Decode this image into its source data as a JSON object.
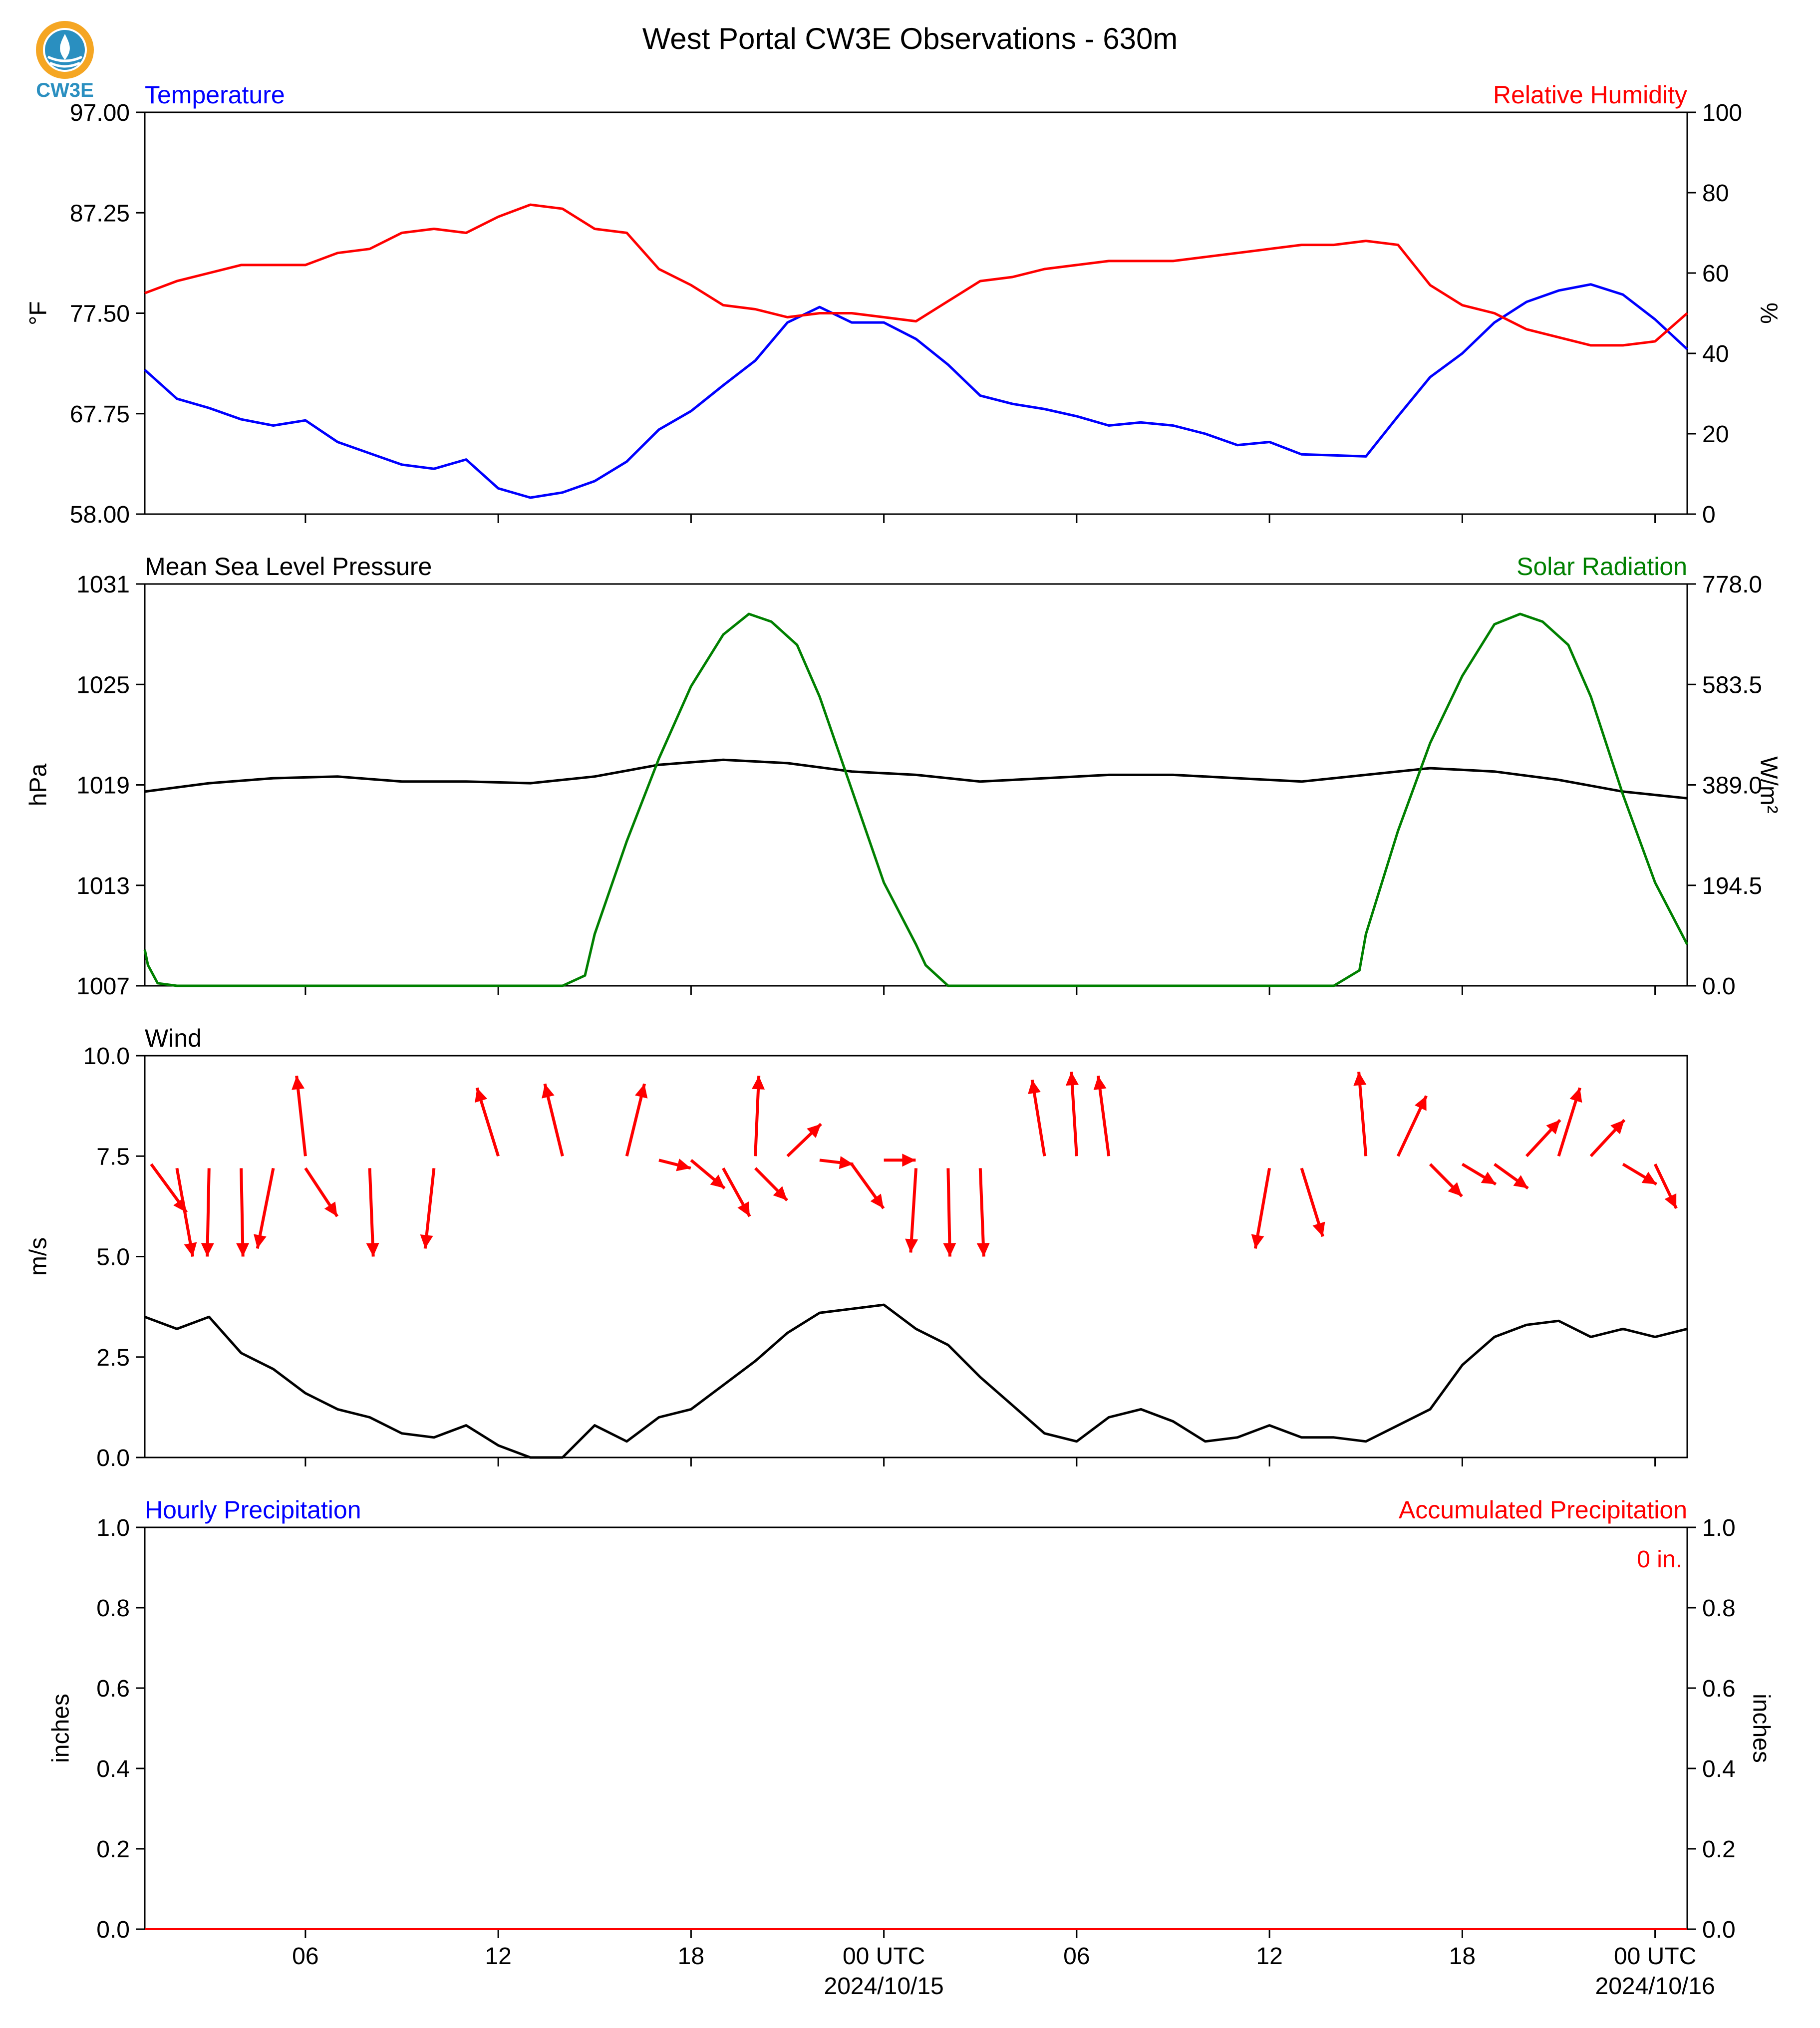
{
  "title": "West Portal CW3E Observations - 630m",
  "logo": {
    "text": "CW3E",
    "colors": {
      "ring": "#f5a623",
      "drop": "#2a8fc0",
      "text": "#2a8fc0"
    }
  },
  "colors": {
    "blue": "#0000ff",
    "red": "#ff0000",
    "green": "#008000",
    "black": "#000000"
  },
  "x_axis": {
    "range_hours": [
      0,
      48
    ],
    "tick_hours": [
      5,
      11,
      17,
      23,
      29,
      35,
      41,
      47
    ],
    "tick_labels": [
      "06",
      "12",
      "18",
      "00 UTC",
      "06",
      "12",
      "18",
      "00 UTC"
    ],
    "date_labels": [
      {
        "hour": 23,
        "text": "2024/10/15"
      },
      {
        "hour": 47,
        "text": "2024/10/16"
      }
    ]
  },
  "chart_data": [
    {
      "type": "line",
      "panel": "temperature-humidity",
      "left_title": "Temperature",
      "right_title": "Relative Humidity",
      "ylabel_left": "°F",
      "ylabel_right": "%",
      "ylim_left": [
        58.0,
        97.0
      ],
      "yticks_left": [
        "58.00",
        "67.75",
        "77.50",
        "87.25",
        "97.00"
      ],
      "ylim_right": [
        0,
        100
      ],
      "yticks_right": [
        "0",
        "20",
        "40",
        "60",
        "80",
        "100"
      ],
      "series": [
        {
          "name": "Temperature",
          "axis": "left",
          "color": "#0000ff",
          "x": [
            0,
            1,
            2,
            3,
            4,
            5,
            6,
            7,
            8,
            9,
            10,
            11,
            12,
            13,
            14,
            15,
            16,
            17,
            18,
            19,
            20,
            21,
            22,
            23,
            24,
            25,
            26,
            27,
            28,
            29,
            30,
            31,
            32,
            33,
            34,
            35,
            36,
            37,
            38,
            39,
            40,
            41,
            42,
            43,
            44,
            45,
            46,
            47,
            48
          ],
          "y": [
            72.0,
            69.2,
            68.3,
            67.2,
            66.6,
            67.1,
            65.0,
            63.9,
            62.8,
            62.4,
            63.3,
            60.5,
            59.6,
            60.1,
            61.2,
            63.1,
            66.2,
            68.0,
            70.5,
            72.9,
            76.6,
            78.1,
            76.6,
            76.6,
            75.0,
            72.5,
            69.5,
            68.7,
            68.2,
            67.5,
            66.6,
            66.9,
            66.6,
            65.8,
            64.7,
            65.0,
            63.8,
            63.7,
            63.6,
            67.5,
            71.3,
            73.6,
            76.6,
            78.6,
            79.7,
            80.3,
            79.3,
            76.9,
            74.0
          ]
        },
        {
          "name": "Relative Humidity",
          "axis": "right",
          "color": "#ff0000",
          "x": [
            0,
            1,
            2,
            3,
            4,
            5,
            6,
            7,
            8,
            9,
            10,
            11,
            12,
            13,
            14,
            15,
            16,
            17,
            18,
            19,
            20,
            21,
            22,
            23,
            24,
            25,
            26,
            27,
            28,
            29,
            30,
            31,
            32,
            33,
            34,
            35,
            36,
            37,
            38,
            39,
            40,
            41,
            42,
            43,
            44,
            45,
            46,
            47,
            48
          ],
          "y": [
            55,
            58,
            60,
            62,
            62,
            62,
            65,
            66,
            70,
            71,
            70,
            74,
            77,
            76,
            71,
            70,
            61,
            57,
            52,
            51,
            49,
            50,
            50,
            49,
            48,
            53,
            58,
            59,
            61,
            62,
            63,
            63,
            63,
            64,
            65,
            66,
            67,
            67,
            68,
            67,
            57,
            52,
            50,
            46,
            44,
            42,
            42,
            43,
            50
          ]
        }
      ]
    },
    {
      "type": "line",
      "panel": "pressure-solar",
      "left_title": "Mean Sea Level Pressure",
      "right_title": "Solar Radiation",
      "ylabel_left": "hPa",
      "ylabel_right": "W/m²",
      "ylim_left": [
        1007,
        1031
      ],
      "yticks_left": [
        "1007",
        "1013",
        "1019",
        "1025",
        "1031"
      ],
      "ylim_right": [
        0.0,
        778.0
      ],
      "yticks_right": [
        "0.0",
        "194.5",
        "389.0",
        "583.5",
        "778.0"
      ],
      "series": [
        {
          "name": "Mean Sea Level Pressure",
          "axis": "left",
          "color": "#000000",
          "x": [
            0,
            2,
            4,
            6,
            8,
            10,
            12,
            14,
            16,
            18,
            20,
            22,
            24,
            26,
            28,
            30,
            32,
            34,
            36,
            38,
            40,
            42,
            44,
            46,
            48
          ],
          "y": [
            1018.6,
            1019.1,
            1019.4,
            1019.5,
            1019.2,
            1019.2,
            1019.1,
            1019.5,
            1020.2,
            1020.5,
            1020.3,
            1019.8,
            1019.6,
            1019.2,
            1019.4,
            1019.6,
            1019.6,
            1019.4,
            1019.2,
            1019.6,
            1020.0,
            1019.8,
            1019.3,
            1018.6,
            1018.2
          ]
        },
        {
          "name": "Solar Radiation",
          "axis": "right",
          "color": "#008000",
          "x": [
            0,
            0.1,
            0.4,
            1,
            5,
            10,
            13.0,
            13.7,
            14.0,
            15,
            16,
            17,
            18,
            18.8,
            19.5,
            20.3,
            21,
            22,
            23,
            24,
            24.3,
            25,
            30,
            35,
            37.0,
            37.8,
            38.0,
            39,
            40,
            41,
            42,
            42.8,
            43.5,
            44.3,
            45,
            46,
            47,
            48
          ],
          "y": [
            70,
            40,
            5,
            0,
            0,
            0,
            0,
            20,
            100,
            280,
            440,
            580,
            680,
            720,
            705,
            660,
            560,
            380,
            200,
            80,
            40,
            0,
            0,
            0,
            0,
            30,
            100,
            300,
            470,
            600,
            700,
            720,
            705,
            660,
            560,
            370,
            200,
            80
          ]
        }
      ]
    },
    {
      "type": "line",
      "panel": "wind",
      "left_title": "Wind",
      "ylabel_left": "m/s",
      "ylim_left": [
        0.0,
        10.0
      ],
      "yticks_left": [
        "0.0",
        "2.5",
        "5.0",
        "7.5",
        "10.0"
      ],
      "series": [
        {
          "name": "Wind",
          "color": "#000000",
          "x": [
            0,
            1,
            2,
            3,
            4,
            5,
            6,
            7,
            8,
            9,
            10,
            11,
            12,
            13,
            14,
            15,
            16,
            17,
            18,
            19,
            20,
            21,
            22,
            23,
            24,
            25,
            26,
            27,
            28,
            29,
            30,
            31,
            32,
            33,
            34,
            35,
            36,
            37,
            38,
            39,
            40,
            41,
            42,
            43,
            44,
            45,
            46,
            47,
            48
          ],
          "y": [
            3.5,
            3.2,
            3.5,
            2.6,
            2.2,
            1.6,
            1.2,
            1.0,
            0.6,
            0.5,
            0.8,
            0.3,
            0.0,
            0.0,
            0.8,
            0.4,
            1.0,
            1.2,
            1.8,
            2.4,
            3.1,
            3.6,
            3.7,
            3.8,
            3.2,
            2.8,
            2.0,
            1.3,
            0.6,
            0.4,
            1.0,
            1.2,
            0.9,
            0.4,
            0.5,
            0.8,
            0.5,
            0.5,
            0.4,
            0.8,
            1.2,
            2.3,
            3.0,
            3.3,
            3.4,
            3.0,
            3.2,
            3.0,
            3.2
          ]
        }
      ],
      "wind_arrows": [
        {
          "x": 0.2,
          "y": 7.3,
          "dx": 2.0,
          "dy": -1.2
        },
        {
          "x": 1.0,
          "y": 7.2,
          "dx": 0.9,
          "dy": -2.2
        },
        {
          "x": 2.0,
          "y": 7.2,
          "dx": -0.1,
          "dy": -2.2
        },
        {
          "x": 3.0,
          "y": 7.2,
          "dx": 0.1,
          "dy": -2.2
        },
        {
          "x": 4.0,
          "y": 7.2,
          "dx": -0.9,
          "dy": -2.0
        },
        {
          "x": 5.0,
          "y": 7.5,
          "dx": -0.5,
          "dy": 2.0
        },
        {
          "x": 5.0,
          "y": 7.2,
          "dx": 1.8,
          "dy": -1.2
        },
        {
          "x": 7.0,
          "y": 7.2,
          "dx": 0.2,
          "dy": -2.2
        },
        {
          "x": 9.0,
          "y": 7.2,
          "dx": -0.5,
          "dy": -2.0
        },
        {
          "x": 11.0,
          "y": 7.5,
          "dx": -1.2,
          "dy": 1.7
        },
        {
          "x": 13.0,
          "y": 7.5,
          "dx": -1.0,
          "dy": 1.8
        },
        {
          "x": 15.0,
          "y": 7.5,
          "dx": 1.0,
          "dy": 1.8
        },
        {
          "x": 16.0,
          "y": 7.4,
          "dx": 1.8,
          "dy": -0.2
        },
        {
          "x": 17.0,
          "y": 7.4,
          "dx": 1.9,
          "dy": -0.7
        },
        {
          "x": 18.0,
          "y": 7.2,
          "dx": 1.5,
          "dy": -1.2
        },
        {
          "x": 19.0,
          "y": 7.5,
          "dx": 0.2,
          "dy": 2.0
        },
        {
          "x": 19.0,
          "y": 7.2,
          "dx": 1.8,
          "dy": -0.8
        },
        {
          "x": 20.0,
          "y": 7.5,
          "dx": 1.9,
          "dy": 0.8
        },
        {
          "x": 21.0,
          "y": 7.4,
          "dx": 1.9,
          "dy": -0.1
        },
        {
          "x": 22.0,
          "y": 7.3,
          "dx": 1.8,
          "dy": -1.1
        },
        {
          "x": 23.0,
          "y": 7.4,
          "dx": 1.8,
          "dy": 0.0
        },
        {
          "x": 24.0,
          "y": 7.2,
          "dx": -0.3,
          "dy": -2.1
        },
        {
          "x": 25.0,
          "y": 7.2,
          "dx": 0.1,
          "dy": -2.2
        },
        {
          "x": 26.0,
          "y": 7.2,
          "dx": 0.2,
          "dy": -2.2
        },
        {
          "x": 28.0,
          "y": 7.5,
          "dx": -0.7,
          "dy": 1.9
        },
        {
          "x": 29.0,
          "y": 7.5,
          "dx": -0.3,
          "dy": 2.1
        },
        {
          "x": 30.0,
          "y": 7.5,
          "dx": -0.6,
          "dy": 2.0
        },
        {
          "x": 35.0,
          "y": 7.2,
          "dx": -0.8,
          "dy": -2.0
        },
        {
          "x": 36.0,
          "y": 7.2,
          "dx": 1.2,
          "dy": -1.7
        },
        {
          "x": 38.0,
          "y": 7.5,
          "dx": -0.4,
          "dy": 2.1
        },
        {
          "x": 39.0,
          "y": 7.5,
          "dx": 1.6,
          "dy": 1.5
        },
        {
          "x": 40.0,
          "y": 7.3,
          "dx": 1.8,
          "dy": -0.8
        },
        {
          "x": 41.0,
          "y": 7.3,
          "dx": 1.9,
          "dy": -0.5
        },
        {
          "x": 42.0,
          "y": 7.3,
          "dx": 1.9,
          "dy": -0.6
        },
        {
          "x": 43.0,
          "y": 7.5,
          "dx": 1.9,
          "dy": 0.9
        },
        {
          "x": 44.0,
          "y": 7.5,
          "dx": 1.2,
          "dy": 1.7
        },
        {
          "x": 45.0,
          "y": 7.5,
          "dx": 1.9,
          "dy": 0.9
        },
        {
          "x": 46.0,
          "y": 7.3,
          "dx": 1.9,
          "dy": -0.5
        },
        {
          "x": 47.0,
          "y": 7.3,
          "dx": 1.2,
          "dy": -1.1
        }
      ]
    },
    {
      "type": "line",
      "panel": "precipitation",
      "left_title": "Hourly Precipitation",
      "right_title": "Accumulated Precipitation",
      "annotation": "0 in.",
      "ylabel_left": "inches",
      "ylabel_right": "inches",
      "ylim_left": [
        0.0,
        1.0
      ],
      "yticks_left": [
        "0.0",
        "0.2",
        "0.4",
        "0.6",
        "0.8",
        "1.0"
      ],
      "ylim_right": [
        0.0,
        1.0
      ],
      "yticks_right": [
        "0.0",
        "0.2",
        "0.4",
        "0.6",
        "0.8",
        "1.0"
      ],
      "series": [
        {
          "name": "Hourly Precipitation",
          "axis": "left",
          "color": "#0000ff",
          "x": [
            0,
            48
          ],
          "y": [
            0,
            0
          ]
        },
        {
          "name": "Accumulated Precipitation",
          "axis": "right",
          "color": "#ff0000",
          "x": [
            0,
            48
          ],
          "y": [
            0,
            0
          ]
        }
      ]
    }
  ]
}
